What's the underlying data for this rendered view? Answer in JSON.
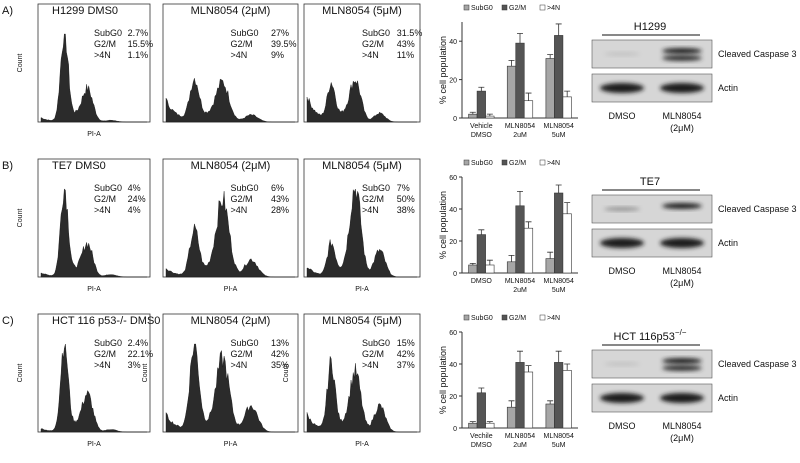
{
  "rows": [
    {
      "label": "A)",
      "histograms": [
        {
          "title": "H1299  DMS0",
          "stats": [
            {
              "name": "SubG0",
              "value": "2.7%"
            },
            {
              "name": "G2/M",
              "value": "15.5%"
            },
            {
              "name": ">4N",
              "value": "1.1%"
            }
          ],
          "x_label": "PI-A",
          "y_label": "Count"
        },
        {
          "title": "MLN8054 (2μM)",
          "stats": [
            {
              "name": "SubG0",
              "value": "27%"
            },
            {
              "name": "G2/M",
              "value": "39.5%"
            },
            {
              "name": ">4N",
              "value": "9%"
            }
          ]
        },
        {
          "title": "MLN8054 (5μM)",
          "stats": [
            {
              "name": "SubG0",
              "value": "31.5%"
            },
            {
              "name": "G2/M",
              "value": "43%"
            },
            {
              "name": ">4N",
              "value": "11%"
            }
          ]
        }
      ],
      "blot": {
        "title": "H1299",
        "bands": [
          "Cleaved Caspase 3",
          "Actin"
        ],
        "lanes": [
          [
            "DMSO"
          ],
          [
            "MLN8054",
            "(2μM)"
          ]
        ]
      }
    },
    {
      "label": "B)",
      "histograms": [
        {
          "title": "TE7   DMS0",
          "stats": [
            {
              "name": "SubG0",
              "value": "4%"
            },
            {
              "name": "G2/M",
              "value": "24%"
            },
            {
              "name": ">4N",
              "value": "4%"
            }
          ],
          "x_label": "PI-A",
          "y_label": "Count"
        },
        {
          "title": "MLN8054 (2μM)",
          "stats": [
            {
              "name": "SubG0",
              "value": "6%"
            },
            {
              "name": "G2/M",
              "value": "43%"
            },
            {
              "name": ">4N",
              "value": "28%"
            }
          ],
          "x_label": "PI-A"
        },
        {
          "title": "MLN8054 (5μM)",
          "stats": [
            {
              "name": "SubG0",
              "value": "7%"
            },
            {
              "name": "G2/M",
              "value": "50%"
            },
            {
              "name": ">4N",
              "value": "38%"
            }
          ],
          "x_label": "PI-A"
        }
      ],
      "blot": {
        "title": "TE7",
        "bands": [
          "Cleaved Caspase 3",
          "Actin"
        ],
        "lanes": [
          [
            "DMSO"
          ],
          [
            "MLN8054",
            "(2μM)"
          ]
        ]
      }
    },
    {
      "label": "C)",
      "histograms": [
        {
          "title": "HCT 116 p53-/- DMS0",
          "stats": [
            {
              "name": "SubG0",
              "value": "2.4%"
            },
            {
              "name": "G2/M",
              "value": "22.1%"
            },
            {
              "name": ">4N",
              "value": "3%"
            }
          ],
          "x_label": "PI-A",
          "y_label": "Count"
        },
        {
          "title": "MLN8054 (2μM)",
          "stats": [
            {
              "name": "SubG0",
              "value": "13%"
            },
            {
              "name": "G2/M",
              "value": "42%"
            },
            {
              "name": ">4N",
              "value": "35%"
            }
          ],
          "x_label": "PI-A",
          "y_label": "Count"
        },
        {
          "title": "MLN8054 (5μM)",
          "stats": [
            {
              "name": "SubG0",
              "value": "15%"
            },
            {
              "name": "G2/M",
              "value": "42%"
            },
            {
              "name": ">4N",
              "value": "37%"
            }
          ],
          "x_label": "PI-A",
          "y_label": "Count"
        }
      ],
      "blot": {
        "title": "HCT 116p53",
        "title_sup": "−/−",
        "bands": [
          "Cleaved Caspase 3",
          "Actin"
        ],
        "lanes": [
          [
            "DMSO"
          ],
          [
            "MLN8054",
            "(2μM)"
          ]
        ]
      }
    }
  ],
  "chart_data": [
    {
      "type": "bar",
      "ylabel": "% cell population",
      "categories": [
        [
          "Vehicle",
          "DMSO"
        ],
        [
          "MLN8054",
          "2uM"
        ],
        [
          "MLN8054",
          "5uM"
        ]
      ],
      "series": [
        {
          "name": "SubG0",
          "color": "#a6a6a6",
          "values": [
            2,
            27,
            31
          ],
          "errors": [
            1,
            3,
            2
          ]
        },
        {
          "name": "G2/M",
          "color": "#555555",
          "values": [
            14,
            39,
            43
          ],
          "errors": [
            2,
            5,
            6
          ]
        },
        {
          "name": ">4N",
          "color": "#ffffff",
          "values": [
            1,
            9,
            11
          ],
          "errors": [
            1,
            4,
            3
          ]
        }
      ],
      "ylim": [
        0,
        50
      ],
      "yticks": [
        0,
        20,
        40
      ]
    },
    {
      "type": "bar",
      "ylabel": "% cell population",
      "categories": [
        [
          "DMSO"
        ],
        [
          "MLN8054",
          "2uM"
        ],
        [
          "MLN8054",
          "5uM"
        ]
      ],
      "series": [
        {
          "name": "SubG0",
          "color": "#a6a6a6",
          "values": [
            5,
            7,
            9
          ],
          "errors": [
            1,
            4,
            4
          ]
        },
        {
          "name": "G2/M",
          "color": "#555555",
          "values": [
            24,
            42,
            50
          ],
          "errors": [
            3,
            9,
            5
          ]
        },
        {
          "name": ">4N",
          "color": "#ffffff",
          "values": [
            5,
            28,
            37
          ],
          "errors": [
            3,
            4,
            7
          ]
        }
      ],
      "ylim": [
        0,
        60
      ],
      "yticks": [
        0,
        20,
        40,
        60
      ]
    },
    {
      "type": "bar",
      "ylabel": "% cell population",
      "categories": [
        [
          "Vechile",
          "DMSO"
        ],
        [
          "MLN8054",
          "2uM"
        ],
        [
          "MLN8054",
          "5uM"
        ]
      ],
      "series": [
        {
          "name": "SubG0",
          "color": "#a6a6a6",
          "values": [
            3,
            13,
            15
          ],
          "errors": [
            1,
            4,
            2
          ]
        },
        {
          "name": "G2/M",
          "color": "#555555",
          "values": [
            22,
            41,
            41
          ],
          "errors": [
            3,
            7,
            7
          ]
        },
        {
          "name": ">4N",
          "color": "#ffffff",
          "values": [
            3,
            35,
            36
          ],
          "errors": [
            1,
            4,
            4
          ]
        }
      ],
      "ylim": [
        0,
        60
      ],
      "yticks": [
        0,
        20,
        40,
        60
      ]
    }
  ]
}
